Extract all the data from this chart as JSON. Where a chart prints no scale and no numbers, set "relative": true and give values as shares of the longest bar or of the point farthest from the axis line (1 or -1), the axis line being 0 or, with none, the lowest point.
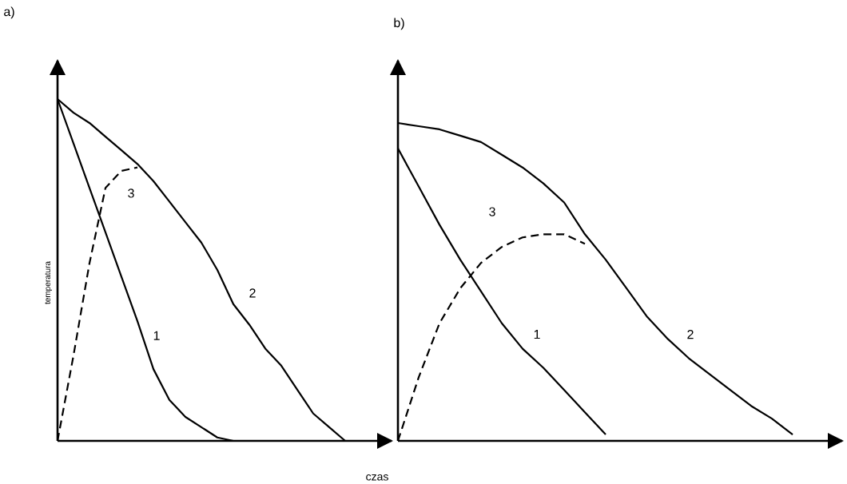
{
  "chart_data": [
    {
      "type": "line",
      "title": "a)",
      "xlabel": "czas",
      "ylabel": "temperatura",
      "relative": true,
      "categories": [
        null,
        null,
        null,
        null,
        null,
        null,
        null,
        null,
        null,
        null,
        null,
        null,
        null,
        null,
        null,
        null,
        null,
        null,
        null,
        null,
        null
      ],
      "series": [
        {
          "name": "1",
          "color": "#000000",
          "line_style": "solid",
          "values": [
            1,
            0.87,
            0.74,
            0.61,
            0.48,
            0.35,
            0.21,
            0.12,
            0.07,
            0.04,
            0.01,
            0,
            null,
            null,
            null,
            null,
            null,
            null,
            null,
            null,
            null
          ]
        },
        {
          "name": "2",
          "color": "#000000",
          "line_style": "solid",
          "values": [
            1,
            0.96,
            0.93,
            0.89,
            0.85,
            0.81,
            0.76,
            0.7,
            0.64,
            0.58,
            0.5,
            0.4,
            0.34,
            0.27,
            0.22,
            0.15,
            0.08,
            0.04,
            0,
            null,
            null
          ]
        },
        {
          "name": "3",
          "color": "#000000",
          "line_style": "dashed",
          "values": [
            0,
            0.25,
            0.52,
            0.74,
            0.79,
            0.8,
            null,
            null,
            null,
            null,
            null,
            null,
            null,
            null,
            null,
            null,
            null,
            null,
            null,
            null,
            null
          ]
        }
      ]
    },
    {
      "type": "line",
      "title": "b)",
      "relative": true,
      "categories": [
        null,
        null,
        null,
        null,
        null,
        null,
        null,
        null,
        null,
        null,
        null,
        null,
        null,
        null,
        null,
        null,
        null,
        null,
        null,
        null,
        null
      ],
      "series": [
        {
          "name": "1",
          "color": "#000000",
          "line_style": "solid",
          "values": [
            0.92,
            0.8,
            0.68,
            0.57,
            0.47,
            0.37,
            0.29,
            0.23,
            0.16,
            0.09,
            0.02,
            null,
            null,
            null,
            null,
            null,
            null,
            null,
            null,
            null,
            null
          ]
        },
        {
          "name": "2",
          "color": "#000000",
          "line_style": "solid",
          "values": [
            1,
            0.99,
            0.98,
            0.96,
            0.94,
            0.9,
            0.86,
            0.81,
            0.75,
            0.65,
            0.57,
            0.48,
            0.39,
            0.32,
            0.26,
            0.21,
            0.16,
            0.11,
            0.07,
            0.02,
            null
          ]
        },
        {
          "name": "3",
          "color": "#000000",
          "line_style": "dashed",
          "values": [
            0,
            0.2,
            0.37,
            0.48,
            0.56,
            0.61,
            0.64,
            0.65,
            0.65,
            0.62,
            null,
            null,
            null,
            null,
            null,
            null,
            null,
            null,
            null,
            null,
            null
          ]
        }
      ]
    }
  ]
}
